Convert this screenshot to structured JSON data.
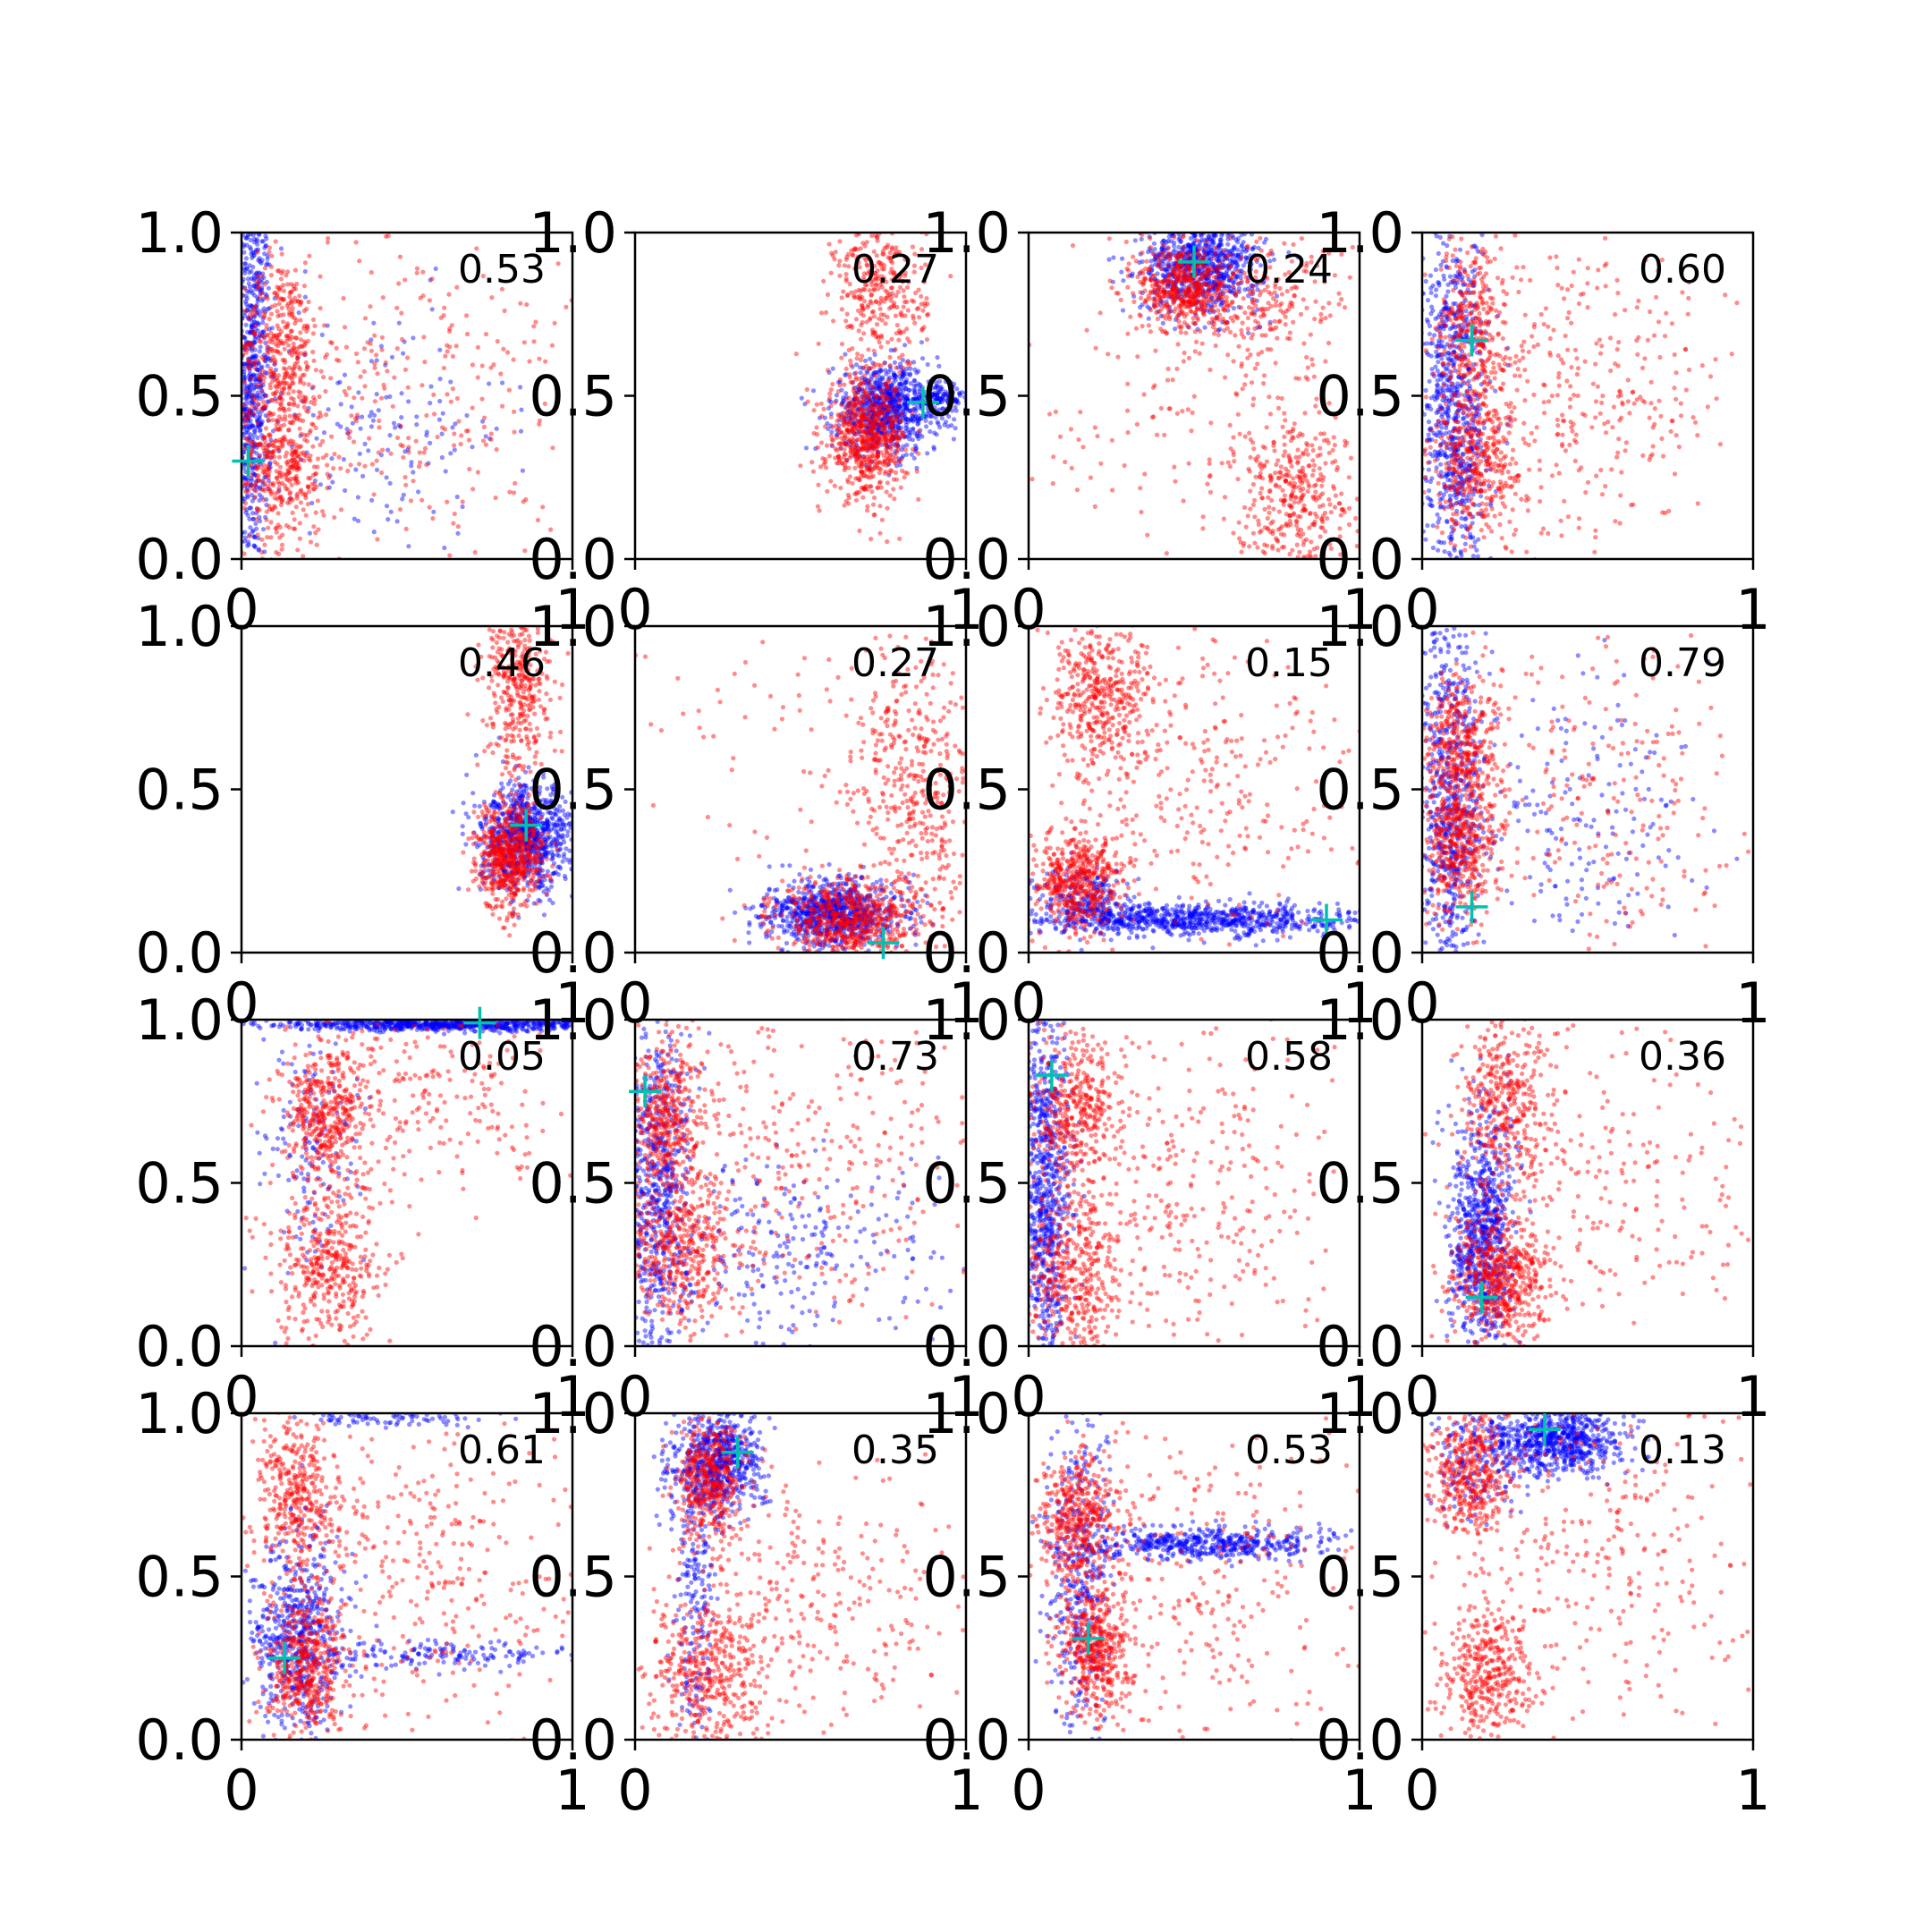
{
  "figure": {
    "grid_rows": 4,
    "grid_cols": 4,
    "colors": {
      "series_a": "#0000ff",
      "series_b": "#ff0000",
      "marker": "#00c0b0",
      "axes": "#000000",
      "background": "#ffffff"
    }
  },
  "chart_data": [
    {
      "type": "scatter",
      "label": "0.53",
      "xlim": [
        0,
        1
      ],
      "ylim": [
        0,
        1
      ],
      "x_ticks": [
        "0",
        "1"
      ],
      "y_ticks": [
        "0.0",
        "0.5",
        "1.0"
      ],
      "marker": [
        0.02,
        0.3
      ],
      "series_a_clusters": [
        {
          "x": 0.03,
          "y": 0.55,
          "sx": 0.03,
          "sy": 0.3,
          "n": 750
        },
        {
          "x": 0.4,
          "y": 0.4,
          "sx": 0.2,
          "sy": 0.2,
          "n": 160
        }
      ],
      "series_b_clusters": [
        {
          "x": 0.12,
          "y": 0.65,
          "sx": 0.06,
          "sy": 0.14,
          "n": 380
        },
        {
          "x": 0.12,
          "y": 0.28,
          "sx": 0.07,
          "sy": 0.12,
          "n": 380
        },
        {
          "x": 0.5,
          "y": 0.5,
          "sx": 0.25,
          "sy": 0.28,
          "n": 300
        }
      ]
    },
    {
      "type": "scatter",
      "label": "0.27",
      "xlim": [
        0,
        1
      ],
      "ylim": [
        0,
        1
      ],
      "x_ticks": [
        "0",
        "1"
      ],
      "y_ticks": [
        "0.0",
        "0.5",
        "1.0"
      ],
      "marker": [
        0.87,
        0.48
      ],
      "series_a_clusters": [
        {
          "x": 0.76,
          "y": 0.46,
          "sx": 0.08,
          "sy": 0.07,
          "n": 800
        },
        {
          "x": 0.92,
          "y": 0.49,
          "sx": 0.05,
          "sy": 0.02,
          "n": 120
        }
      ],
      "series_b_clusters": [
        {
          "x": 0.7,
          "y": 0.37,
          "sx": 0.06,
          "sy": 0.09,
          "n": 650
        },
        {
          "x": 0.74,
          "y": 0.82,
          "sx": 0.07,
          "sy": 0.13,
          "n": 360
        }
      ]
    },
    {
      "type": "scatter",
      "label": "0.24",
      "xlim": [
        0,
        1
      ],
      "ylim": [
        0,
        1
      ],
      "x_ticks": [
        "0",
        "1"
      ],
      "y_ticks": [
        "0.0",
        "0.5",
        "1.0"
      ],
      "marker": [
        0.5,
        0.91
      ],
      "series_a_clusters": [
        {
          "x": 0.52,
          "y": 0.9,
          "sx": 0.09,
          "sy": 0.07,
          "n": 800
        }
      ],
      "series_b_clusters": [
        {
          "x": 0.47,
          "y": 0.83,
          "sx": 0.07,
          "sy": 0.07,
          "n": 520
        },
        {
          "x": 0.8,
          "y": 0.2,
          "sx": 0.09,
          "sy": 0.12,
          "n": 360
        },
        {
          "x": 0.72,
          "y": 0.78,
          "sx": 0.12,
          "sy": 0.1,
          "n": 200
        },
        {
          "x": 0.5,
          "y": 0.4,
          "sx": 0.25,
          "sy": 0.22,
          "n": 150
        }
      ]
    },
    {
      "type": "scatter",
      "label": "0.60",
      "xlim": [
        0,
        1
      ],
      "ylim": [
        0,
        1
      ],
      "x_ticks": [
        "0",
        "1"
      ],
      "y_ticks": [
        "0.0",
        "0.5",
        "1.0"
      ],
      "marker": [
        0.15,
        0.67
      ],
      "series_a_clusters": [
        {
          "x": 0.1,
          "y": 0.45,
          "sx": 0.05,
          "sy": 0.28,
          "n": 800
        }
      ],
      "series_b_clusters": [
        {
          "x": 0.15,
          "y": 0.73,
          "sx": 0.05,
          "sy": 0.15,
          "n": 340
        },
        {
          "x": 0.17,
          "y": 0.3,
          "sx": 0.07,
          "sy": 0.12,
          "n": 400
        },
        {
          "x": 0.5,
          "y": 0.5,
          "sx": 0.22,
          "sy": 0.22,
          "n": 330
        }
      ]
    },
    {
      "type": "scatter",
      "label": "0.46",
      "xlim": [
        0,
        1
      ],
      "ylim": [
        0,
        1
      ],
      "x_ticks": [
        "0",
        "1"
      ],
      "y_ticks": [
        "0.0",
        "0.5",
        "1.0"
      ],
      "marker": [
        0.86,
        0.39
      ],
      "series_a_clusters": [
        {
          "x": 0.86,
          "y": 0.35,
          "sx": 0.07,
          "sy": 0.08,
          "n": 850
        }
      ],
      "series_b_clusters": [
        {
          "x": 0.81,
          "y": 0.3,
          "sx": 0.05,
          "sy": 0.08,
          "n": 620
        },
        {
          "x": 0.84,
          "y": 0.82,
          "sx": 0.05,
          "sy": 0.14,
          "n": 380
        }
      ]
    },
    {
      "type": "scatter",
      "label": "0.27",
      "xlim": [
        0,
        1
      ],
      "ylim": [
        0,
        1
      ],
      "x_ticks": [
        "0",
        "1"
      ],
      "y_ticks": [
        "0.0",
        "0.5",
        "1.0"
      ],
      "marker": [
        0.75,
        0.03
      ],
      "series_a_clusters": [
        {
          "x": 0.6,
          "y": 0.12,
          "sx": 0.1,
          "sy": 0.05,
          "n": 850
        }
      ],
      "series_b_clusters": [
        {
          "x": 0.65,
          "y": 0.1,
          "sx": 0.11,
          "sy": 0.06,
          "n": 600
        },
        {
          "x": 0.85,
          "y": 0.5,
          "sx": 0.1,
          "sy": 0.22,
          "n": 420
        },
        {
          "x": 0.55,
          "y": 0.7,
          "sx": 0.22,
          "sy": 0.2,
          "n": 80
        }
      ]
    },
    {
      "type": "scatter",
      "label": "0.15",
      "xlim": [
        0,
        1
      ],
      "ylim": [
        0,
        1
      ],
      "x_ticks": [
        "0",
        "1"
      ],
      "y_ticks": [
        "0.0",
        "0.5",
        "1.0"
      ],
      "marker": [
        0.9,
        0.1
      ],
      "series_a_clusters": [
        {
          "x": 0.48,
          "y": 0.1,
          "sx": 0.27,
          "sy": 0.025,
          "n": 850
        },
        {
          "x": 0.18,
          "y": 0.16,
          "sx": 0.07,
          "sy": 0.05,
          "n": 200
        }
      ],
      "series_b_clusters": [
        {
          "x": 0.15,
          "y": 0.22,
          "sx": 0.07,
          "sy": 0.08,
          "n": 500
        },
        {
          "x": 0.22,
          "y": 0.78,
          "sx": 0.08,
          "sy": 0.12,
          "n": 420
        },
        {
          "x": 0.55,
          "y": 0.55,
          "sx": 0.25,
          "sy": 0.25,
          "n": 300
        }
      ]
    },
    {
      "type": "scatter",
      "label": "0.79",
      "xlim": [
        0,
        1
      ],
      "ylim": [
        0,
        1
      ],
      "x_ticks": [
        "0",
        "1"
      ],
      "y_ticks": [
        "0.0",
        "0.5",
        "1.0"
      ],
      "marker": [
        0.15,
        0.14
      ],
      "series_a_clusters": [
        {
          "x": 0.08,
          "y": 0.45,
          "sx": 0.05,
          "sy": 0.28,
          "n": 700
        },
        {
          "x": 0.45,
          "y": 0.4,
          "sx": 0.22,
          "sy": 0.2,
          "n": 200
        }
      ],
      "series_b_clusters": [
        {
          "x": 0.12,
          "y": 0.62,
          "sx": 0.06,
          "sy": 0.12,
          "n": 400
        },
        {
          "x": 0.12,
          "y": 0.33,
          "sx": 0.06,
          "sy": 0.1,
          "n": 400
        },
        {
          "x": 0.55,
          "y": 0.45,
          "sx": 0.25,
          "sy": 0.25,
          "n": 250
        }
      ]
    },
    {
      "type": "scatter",
      "label": "0.05",
      "xlim": [
        0,
        1
      ],
      "ylim": [
        0,
        1
      ],
      "x_ticks": [
        "0",
        "1"
      ],
      "y_ticks": [
        "0.0",
        "0.5",
        "1.0"
      ],
      "marker": [
        0.72,
        0.99
      ],
      "series_a_clusters": [
        {
          "x": 0.6,
          "y": 0.985,
          "sx": 0.25,
          "sy": 0.01,
          "n": 750
        },
        {
          "x": 0.2,
          "y": 0.6,
          "sx": 0.08,
          "sy": 0.2,
          "n": 150
        }
      ],
      "series_b_clusters": [
        {
          "x": 0.25,
          "y": 0.72,
          "sx": 0.06,
          "sy": 0.1,
          "n": 380
        },
        {
          "x": 0.26,
          "y": 0.25,
          "sx": 0.08,
          "sy": 0.13,
          "n": 420
        },
        {
          "x": 0.55,
          "y": 0.75,
          "sx": 0.22,
          "sy": 0.15,
          "n": 250
        }
      ]
    },
    {
      "type": "scatter",
      "label": "0.73",
      "xlim": [
        0,
        1
      ],
      "ylim": [
        0,
        1
      ],
      "x_ticks": [
        "0",
        "1"
      ],
      "y_ticks": [
        "0.0",
        "0.5",
        "1.0"
      ],
      "marker": [
        0.03,
        0.78
      ],
      "series_a_clusters": [
        {
          "x": 0.06,
          "y": 0.45,
          "sx": 0.05,
          "sy": 0.28,
          "n": 700
        },
        {
          "x": 0.45,
          "y": 0.28,
          "sx": 0.22,
          "sy": 0.15,
          "n": 250
        }
      ],
      "series_b_clusters": [
        {
          "x": 0.1,
          "y": 0.7,
          "sx": 0.06,
          "sy": 0.12,
          "n": 400
        },
        {
          "x": 0.13,
          "y": 0.3,
          "sx": 0.08,
          "sy": 0.12,
          "n": 420
        },
        {
          "x": 0.5,
          "y": 0.55,
          "sx": 0.25,
          "sy": 0.25,
          "n": 350
        }
      ]
    },
    {
      "type": "scatter",
      "label": "0.58",
      "xlim": [
        0,
        1
      ],
      "ylim": [
        0,
        1
      ],
      "x_ticks": [
        "0",
        "1"
      ],
      "y_ticks": [
        "0.0",
        "0.5",
        "1.0"
      ],
      "marker": [
        0.07,
        0.83
      ],
      "series_a_clusters": [
        {
          "x": 0.05,
          "y": 0.5,
          "sx": 0.04,
          "sy": 0.3,
          "n": 800
        }
      ],
      "series_b_clusters": [
        {
          "x": 0.14,
          "y": 0.72,
          "sx": 0.07,
          "sy": 0.12,
          "n": 400
        },
        {
          "x": 0.13,
          "y": 0.22,
          "sx": 0.07,
          "sy": 0.13,
          "n": 400
        },
        {
          "x": 0.5,
          "y": 0.45,
          "sx": 0.25,
          "sy": 0.28,
          "n": 350
        }
      ]
    },
    {
      "type": "scatter",
      "label": "0.36",
      "xlim": [
        0,
        1
      ],
      "ylim": [
        0,
        1
      ],
      "x_ticks": [
        "0",
        "1"
      ],
      "y_ticks": [
        "0.0",
        "0.5",
        "1.0"
      ],
      "marker": [
        0.18,
        0.15
      ],
      "series_a_clusters": [
        {
          "x": 0.18,
          "y": 0.35,
          "sx": 0.05,
          "sy": 0.18,
          "n": 800
        }
      ],
      "series_b_clusters": [
        {
          "x": 0.24,
          "y": 0.2,
          "sx": 0.07,
          "sy": 0.09,
          "n": 550
        },
        {
          "x": 0.25,
          "y": 0.75,
          "sx": 0.07,
          "sy": 0.15,
          "n": 380
        },
        {
          "x": 0.55,
          "y": 0.5,
          "sx": 0.25,
          "sy": 0.25,
          "n": 250
        }
      ]
    },
    {
      "type": "scatter",
      "label": "0.61",
      "xlim": [
        0,
        1
      ],
      "ylim": [
        0,
        1
      ],
      "x_ticks": [
        "0",
        "1"
      ],
      "y_ticks": [
        "0.0",
        "0.5",
        "1.0"
      ],
      "marker": [
        0.13,
        0.25
      ],
      "series_a_clusters": [
        {
          "x": 0.17,
          "y": 0.3,
          "sx": 0.07,
          "sy": 0.15,
          "n": 600
        },
        {
          "x": 0.6,
          "y": 0.26,
          "sx": 0.22,
          "sy": 0.02,
          "n": 150
        },
        {
          "x": 0.45,
          "y": 0.98,
          "sx": 0.15,
          "sy": 0.01,
          "n": 80
        }
      ],
      "series_b_clusters": [
        {
          "x": 0.2,
          "y": 0.22,
          "sx": 0.06,
          "sy": 0.1,
          "n": 450
        },
        {
          "x": 0.17,
          "y": 0.75,
          "sx": 0.06,
          "sy": 0.14,
          "n": 380
        },
        {
          "x": 0.55,
          "y": 0.5,
          "sx": 0.25,
          "sy": 0.25,
          "n": 330
        }
      ]
    },
    {
      "type": "scatter",
      "label": "0.35",
      "xlim": [
        0,
        1
      ],
      "ylim": [
        0,
        1
      ],
      "x_ticks": [
        "0",
        "1"
      ],
      "y_ticks": [
        "0.0",
        "0.5",
        "1.0"
      ],
      "marker": [
        0.31,
        0.88
      ],
      "series_a_clusters": [
        {
          "x": 0.25,
          "y": 0.85,
          "sx": 0.07,
          "sy": 0.08,
          "n": 650
        },
        {
          "x": 0.18,
          "y": 0.4,
          "sx": 0.03,
          "sy": 0.25,
          "n": 200
        }
      ],
      "series_b_clusters": [
        {
          "x": 0.22,
          "y": 0.8,
          "sx": 0.05,
          "sy": 0.1,
          "n": 420
        },
        {
          "x": 0.22,
          "y": 0.2,
          "sx": 0.09,
          "sy": 0.12,
          "n": 420
        },
        {
          "x": 0.55,
          "y": 0.45,
          "sx": 0.25,
          "sy": 0.2,
          "n": 300
        }
      ]
    },
    {
      "type": "scatter",
      "label": "0.53",
      "xlim": [
        0,
        1
      ],
      "ylim": [
        0,
        1
      ],
      "x_ticks": [
        "0",
        "1"
      ],
      "y_ticks": [
        "0.0",
        "0.5",
        "1.0"
      ],
      "marker": [
        0.18,
        0.31
      ],
      "series_a_clusters": [
        {
          "x": 0.55,
          "y": 0.6,
          "sx": 0.2,
          "sy": 0.025,
          "n": 500
        },
        {
          "x": 0.15,
          "y": 0.5,
          "sx": 0.05,
          "sy": 0.25,
          "n": 400
        }
      ],
      "series_b_clusters": [
        {
          "x": 0.15,
          "y": 0.68,
          "sx": 0.06,
          "sy": 0.1,
          "n": 420
        },
        {
          "x": 0.2,
          "y": 0.28,
          "sx": 0.05,
          "sy": 0.1,
          "n": 450
        },
        {
          "x": 0.55,
          "y": 0.45,
          "sx": 0.25,
          "sy": 0.25,
          "n": 300
        }
      ]
    },
    {
      "type": "scatter",
      "label": "0.13",
      "xlim": [
        0,
        1
      ],
      "ylim": [
        0,
        1
      ],
      "x_ticks": [
        "0",
        "1"
      ],
      "y_ticks": [
        "0.0",
        "0.5",
        "1.0"
      ],
      "marker": [
        0.37,
        0.95
      ],
      "series_a_clusters": [
        {
          "x": 0.4,
          "y": 0.92,
          "sx": 0.1,
          "sy": 0.05,
          "n": 750
        },
        {
          "x": 0.15,
          "y": 0.85,
          "sx": 0.06,
          "sy": 0.08,
          "n": 150
        }
      ],
      "series_b_clusters": [
        {
          "x": 0.15,
          "y": 0.82,
          "sx": 0.06,
          "sy": 0.1,
          "n": 400
        },
        {
          "x": 0.2,
          "y": 0.2,
          "sx": 0.07,
          "sy": 0.1,
          "n": 380
        },
        {
          "x": 0.55,
          "y": 0.6,
          "sx": 0.25,
          "sy": 0.25,
          "n": 300
        }
      ]
    }
  ]
}
